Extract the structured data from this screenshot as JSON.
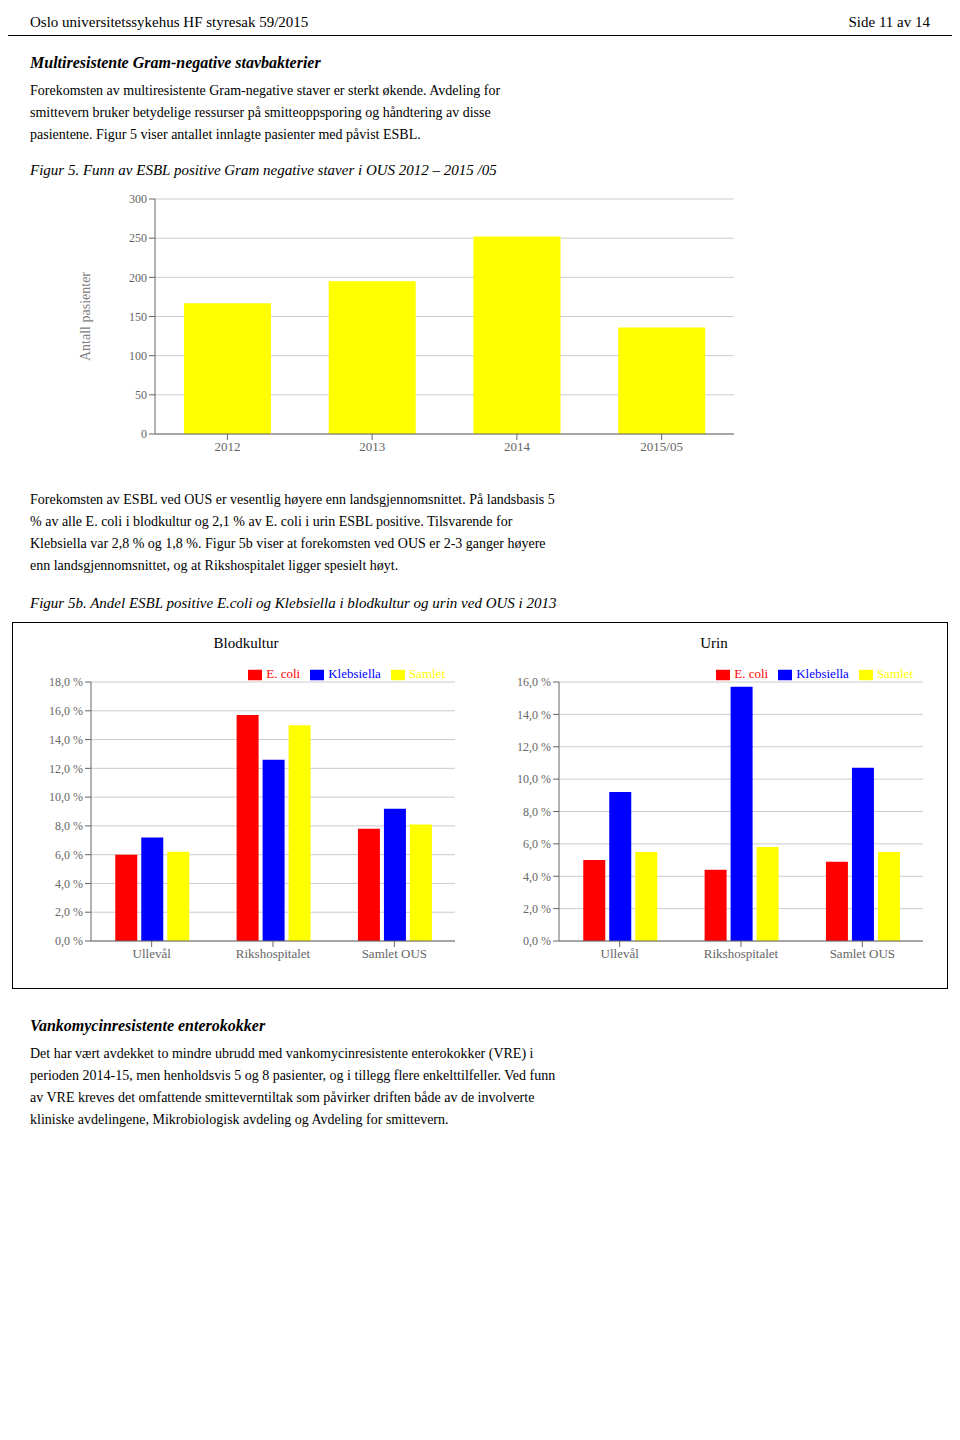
{
  "annotations": [
    "Oslo universitetssykehus HF styresak 59/2015",
    "Side 11 av 14",
    "Multiresistente Gram-negative stavbakterier",
    "Forekomsten av multiresistente Gram-negative staver er sterkt økende. Avdeling for",
    "smittevern bruker betydelige ressurser på smitteoppsporing og håndtering av disse",
    "pasientene. Figur 5 viser antallet innlagte pasienter med påvist ESBL.",
    "Forekomsten av ESBL ved OUS er vesentlig høyere enn landsgjennomsnittet. På landsbasis 5",
    "% av alle E. coli i blodkultur og 2,1 % av E. coli i urin ESBL positive. Tilsvarende for",
    "Klebsiella var 2,8 % og 1,8 %. Figur 5b viser at forekomsten ved OUS er 2-3 ganger høyere",
    "enn landsgjennomsnittet, og at Rikshospitalet ligger spesielt høyt.",
    "Figur 5b. Andel ESBL positive E.coli og Klebsiella i blodkultur og urin ved OUS i 2013",
    "Vankomycinresistente enterokokker",
    "Det har vært avdekket to mindre ubrudd med vankomycinresistente enterokokker (VRE) i",
    "perioden 2014-15, men henholdsvis 5 og 8 pasienter, og i tillegg flere enkelttilfeller. Ved funn",
    "av VRE kreves det omfattende smitteverntiltak som påvirker driften både av de involverte",
    "kliniske avdelingene, Mikrobiologisk avdeling og Avdeling for smittevern."
  ],
  "chart_data": [
    {
      "type": "bar",
      "title": "Figur 5. Funn av ESBL positive Gram negative staver i OUS 2012 – 2015 /05",
      "y_label": "Antall pasienter",
      "categories": [
        "2012",
        "2013",
        "2014",
        "2015/05"
      ],
      "values": [
        167,
        195,
        252,
        136
      ],
      "color": "#FFFF00",
      "ylim": [
        0,
        300
      ],
      "yticks": [
        0,
        50,
        100,
        150,
        200,
        250,
        300
      ],
      "grid": true
    },
    {
      "type": "bar",
      "title": "Blodkultur",
      "categories": [
        "Ullevål",
        "Rikshospitalet",
        "Samlet OUS"
      ],
      "series": [
        {
          "name": "E. coli",
          "color": "#FF0000",
          "values": [
            6.0,
            15.7,
            7.8
          ]
        },
        {
          "name": "Klebsiella",
          "color": "#0000FF",
          "values": [
            7.2,
            12.6,
            9.2
          ]
        },
        {
          "name": "Samlet",
          "color": "#FFFF00",
          "values": [
            6.2,
            15.0,
            8.1
          ]
        }
      ],
      "ylim": [
        0,
        18
      ],
      "yticks": [
        {
          "value": 0,
          "label": "0,0 %"
        },
        {
          "value": 2,
          "label": "2,0 %"
        },
        {
          "value": 4,
          "label": "4,0 %"
        },
        {
          "value": 6,
          "label": "6,0 %"
        },
        {
          "value": 8,
          "label": "8,0 %"
        },
        {
          "value": 10,
          "label": "10,0 %"
        },
        {
          "value": 12,
          "label": "12,0 %"
        },
        {
          "value": 14,
          "label": "14,0 %"
        },
        {
          "value": 16,
          "label": "16,0 %"
        },
        {
          "value": 18,
          "label": "18,0 %"
        }
      ],
      "legend": "upper right",
      "grid": true
    },
    {
      "type": "bar",
      "title": "Urin",
      "categories": [
        "Ullevål",
        "Rikshospitalet",
        "Samlet OUS"
      ],
      "series": [
        {
          "name": "E. coli",
          "color": "#FF0000",
          "values": [
            5.0,
            4.4,
            4.9
          ]
        },
        {
          "name": "Klebsiella",
          "color": "#0000FF",
          "values": [
            9.2,
            15.7,
            10.7
          ]
        },
        {
          "name": "Samlet",
          "color": "#FFFF00",
          "values": [
            5.5,
            5.8,
            5.5
          ]
        }
      ],
      "ylim": [
        0,
        16
      ],
      "yticks": [
        {
          "value": 0,
          "label": "0,0 %"
        },
        {
          "value": 2,
          "label": "2,0 %"
        },
        {
          "value": 4,
          "label": "4,0 %"
        },
        {
          "value": 6,
          "label": "6,0 %"
        },
        {
          "value": 8,
          "label": "8,0 %"
        },
        {
          "value": 10,
          "label": "10,0 %"
        },
        {
          "value": 12,
          "label": "12,0 %"
        },
        {
          "value": 14,
          "label": "14,0 %"
        },
        {
          "value": 16,
          "label": "16,0 %"
        }
      ],
      "legend": "upper right",
      "grid": true
    }
  ]
}
